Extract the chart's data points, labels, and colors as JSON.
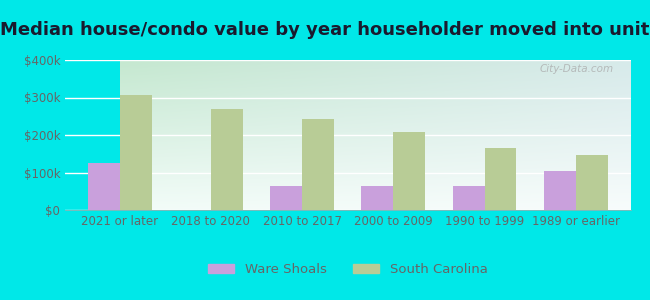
{
  "title": "Median house/condo value by year householder moved into unit",
  "categories": [
    "2021 or later",
    "2018 to 2020",
    "2010 to 2017",
    "2000 to 2009",
    "1990 to 1999",
    "1989 or earlier"
  ],
  "ware_shoals": [
    125000,
    0,
    65000,
    65000,
    65000,
    105000
  ],
  "south_carolina": [
    307000,
    270000,
    243000,
    208000,
    165000,
    148000
  ],
  "ware_shoals_color": "#c9a0dc",
  "south_carolina_color": "#b8cc96",
  "background_color": "#00e8e8",
  "ylabel_color": "#666666",
  "ylim": [
    0,
    400000
  ],
  "yticks": [
    0,
    100000,
    200000,
    300000,
    400000
  ],
  "bar_width": 0.35,
  "legend_ware_shoals": "Ware Shoals",
  "legend_sc": "South Carolina",
  "watermark": "City-Data.com",
  "title_fontsize": 13,
  "tick_fontsize": 8.5,
  "legend_fontsize": 9.5,
  "grad_left_top": "#c8e8d0",
  "grad_right_top": "#d8eae8",
  "grad_bottom": "#f0faf8"
}
